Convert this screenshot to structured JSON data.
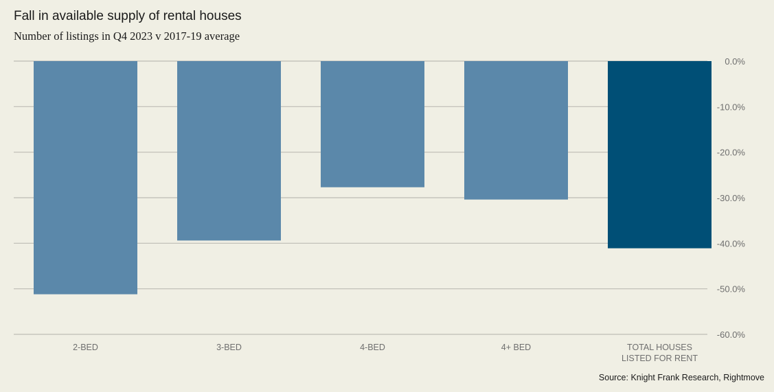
{
  "chart_data": {
    "type": "bar",
    "title": "Fall in available supply of rental houses",
    "subtitle": "Number of listings in Q4 2023 v 2017-19 average",
    "categories": [
      [
        "2-BED"
      ],
      [
        "3-BED"
      ],
      [
        "4-BED"
      ],
      [
        "4+ BED"
      ],
      [
        "TOTAL HOUSES",
        "LISTED FOR RENT"
      ]
    ],
    "values": [
      -51.2,
      -39.4,
      -27.7,
      -30.4,
      -41.1
    ],
    "colors": [
      "#5b88aa",
      "#5b88aa",
      "#5b88aa",
      "#5b88aa",
      "#004f76"
    ],
    "ylim": [
      -60,
      0
    ],
    "yticks": [
      0,
      -10,
      -20,
      -30,
      -40,
      -50,
      -60
    ],
    "ytick_labels": [
      "0.0%",
      "-10.0%",
      "-20.0%",
      "-30.0%",
      "-40.0%",
      "-50.0%",
      "-60.0%"
    ],
    "y_axis_side": "right",
    "grid": true,
    "xlabel": "",
    "ylabel": "",
    "source": "Source: Knight Frank Research, Rightmove"
  }
}
